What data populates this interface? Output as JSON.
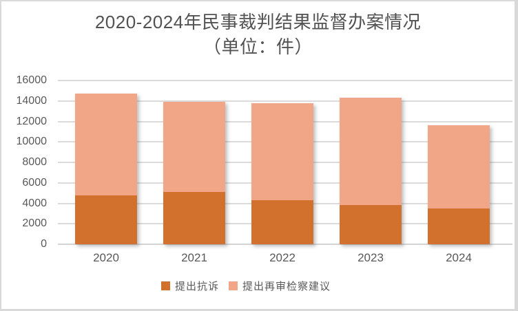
{
  "chart_data": {
    "type": "bar",
    "stacked": true,
    "title": "2020-2024年民事裁判结果监督办案情况",
    "subtitle": "（单位：件）",
    "categories": [
      "2020",
      "2021",
      "2022",
      "2023",
      "2024"
    ],
    "series": [
      {
        "name": "提出抗诉",
        "color": "#D2712E",
        "values": [
          4800,
          5100,
          4300,
          3800,
          3500
        ]
      },
      {
        "name": "提出再审检察建议",
        "color": "#F2A688",
        "values": [
          9900,
          8800,
          9500,
          10500,
          8100
        ]
      }
    ],
    "totals": [
      14700,
      13900,
      13800,
      14300,
      11600
    ],
    "xlabel": "",
    "ylabel": "",
    "ylim": [
      0,
      16000
    ],
    "yticks": [
      0,
      2000,
      4000,
      6000,
      8000,
      10000,
      12000,
      14000,
      16000
    ],
    "grid": true,
    "legend_position": "bottom"
  },
  "colors": {
    "title_text": "#525252",
    "axis_text": "#595959",
    "gridline": "#DBDBDB",
    "page_border": "#D9D9D9",
    "background": "#FFFFFF"
  }
}
